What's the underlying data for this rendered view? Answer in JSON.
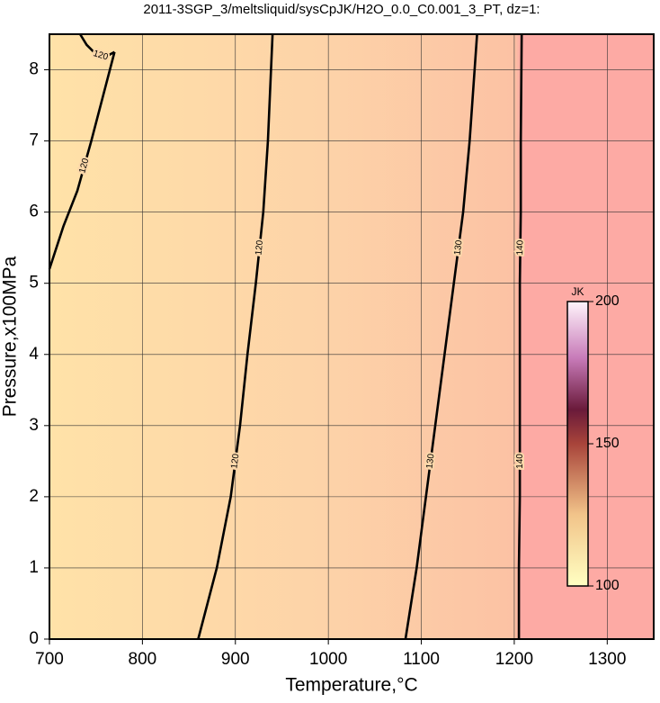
{
  "chart_data": {
    "type": "contour",
    "title": "2011-3SGP_3/meltsliquid/sysCpJK/H2O_0.0_C0.001_3_PT, dz=1:",
    "xlabel": "Temperature,°C",
    "ylabel": "Pressure,x100MPa",
    "xlim": [
      700,
      1350
    ],
    "ylim": [
      0,
      8.5
    ],
    "xticks": [
      700,
      800,
      900,
      1000,
      1100,
      1200,
      1300
    ],
    "yticks": [
      0,
      1,
      2,
      3,
      4,
      5,
      6,
      7,
      8
    ],
    "grid": true,
    "contours": [
      {
        "level": 120,
        "x": [
          860,
          880,
          895,
          905,
          913,
          922,
          930,
          935,
          940
        ],
        "y": [
          0,
          1,
          2,
          3,
          4,
          5,
          6,
          7,
          8.5
        ]
      },
      {
        "level": 130,
        "x": [
          1083,
          1095,
          1105,
          1115,
          1125,
          1135,
          1145,
          1152,
          1160
        ],
        "y": [
          0,
          1,
          2,
          3,
          4,
          5,
          6,
          7,
          8.5
        ]
      },
      {
        "level": 140,
        "x": [
          1205,
          1205,
          1206,
          1206,
          1206,
          1206,
          1207,
          1207,
          1208
        ],
        "y": [
          0,
          1,
          2,
          3,
          4,
          5,
          6,
          7,
          8.5
        ]
      },
      {
        "level": 120,
        "x": [
          700,
          715,
          730,
          745,
          757,
          770
        ],
        "y": [
          5.2,
          5.8,
          6.3,
          7,
          7.6,
          8.25
        ]
      },
      {
        "level": 120,
        "x": [
          733,
          740,
          750,
          760,
          770
        ],
        "y": [
          8.5,
          8.35,
          8.22,
          8.18,
          8.25
        ]
      }
    ],
    "colorbar": {
      "label": "JK",
      "lim": [
        100,
        200
      ],
      "ticks": [
        100,
        150,
        200
      ]
    }
  }
}
